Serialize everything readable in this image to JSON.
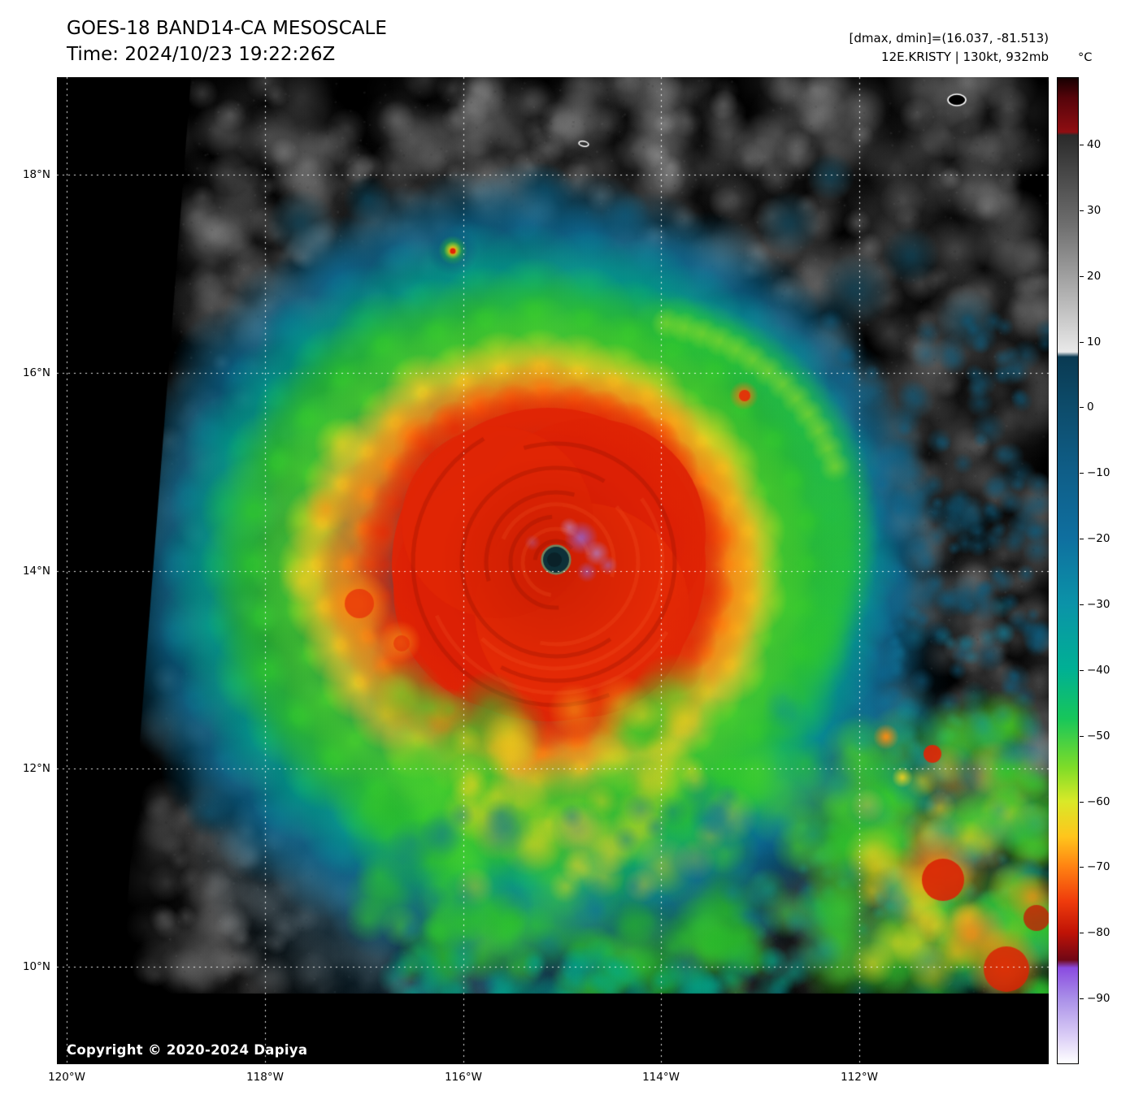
{
  "header": {
    "title": "GOES-18 BAND14-CA MESOSCALE",
    "time_line": "Time: 2024/10/23 19:22:26Z",
    "annotation_line1": "[dmax, dmin]=(16.037, -81.513)",
    "annotation_line2": "12E.KRISTY | 130kt, 932mb"
  },
  "colorbar": {
    "unit_label": "°C",
    "ticks": [
      {
        "label": "40",
        "value": 40
      },
      {
        "label": "30",
        "value": 30
      },
      {
        "label": "20",
        "value": 20
      },
      {
        "label": "10",
        "value": 10
      },
      {
        "label": "0",
        "value": 0
      },
      {
        "label": "−10",
        "value": -10
      },
      {
        "label": "−20",
        "value": -20
      },
      {
        "label": "−30",
        "value": -30
      },
      {
        "label": "−40",
        "value": -40
      },
      {
        "label": "−50",
        "value": -50
      },
      {
        "label": "−60",
        "value": -60
      },
      {
        "label": "−70",
        "value": -70
      },
      {
        "label": "−80",
        "value": -80
      },
      {
        "label": "−90",
        "value": -90
      }
    ],
    "gradient_stops": [
      {
        "frac": 0.0,
        "color": "#170001"
      },
      {
        "frac": 0.02,
        "color": "#55040a"
      },
      {
        "frac": 0.055,
        "color": "#8f0e12"
      },
      {
        "frac": 0.058,
        "color": "#2a2a2a"
      },
      {
        "frac": 0.15,
        "color": "#6f6f6f"
      },
      {
        "frac": 0.278,
        "color": "#e9e9e9"
      },
      {
        "frac": 0.283,
        "color": "#0a3a52"
      },
      {
        "frac": 0.335,
        "color": "#0d4c6b"
      },
      {
        "frac": 0.4,
        "color": "#0f5e88"
      },
      {
        "frac": 0.467,
        "color": "#0f6f9f"
      },
      {
        "frac": 0.534,
        "color": "#0b93a8"
      },
      {
        "frac": 0.6,
        "color": "#00b094"
      },
      {
        "frac": 0.65,
        "color": "#17c65a"
      },
      {
        "frac": 0.7,
        "color": "#7fdc28"
      },
      {
        "frac": 0.734,
        "color": "#d9e928"
      },
      {
        "frac": 0.77,
        "color": "#ffc51c"
      },
      {
        "frac": 0.8,
        "color": "#ff8312"
      },
      {
        "frac": 0.835,
        "color": "#ef3c0c"
      },
      {
        "frac": 0.867,
        "color": "#c01306"
      },
      {
        "frac": 0.895,
        "color": "#700715"
      },
      {
        "frac": 0.903,
        "color": "#8a4be0"
      },
      {
        "frac": 0.934,
        "color": "#a98fe8"
      },
      {
        "frac": 0.975,
        "color": "#ded2f7"
      },
      {
        "frac": 1.0,
        "color": "#ffffff"
      }
    ]
  },
  "axes": {
    "lat_ticks": [
      {
        "label": "18°N",
        "value": 18
      },
      {
        "label": "16°N",
        "value": 16
      },
      {
        "label": "14°N",
        "value": 14
      },
      {
        "label": "12°N",
        "value": 12
      },
      {
        "label": "10°N",
        "value": 10
      }
    ],
    "lon_ticks": [
      {
        "label": "120°W",
        "value": 120
      },
      {
        "label": "118°W",
        "value": 118
      },
      {
        "label": "116°W",
        "value": 116
      },
      {
        "label": "114°W",
        "value": 114
      },
      {
        "label": "112°W",
        "value": 112
      }
    ],
    "grid": {
      "color": "#ffffff",
      "style": "dotted"
    }
  },
  "map": {
    "copyright": "Copyright © 2020-2024 Dapiya"
  }
}
